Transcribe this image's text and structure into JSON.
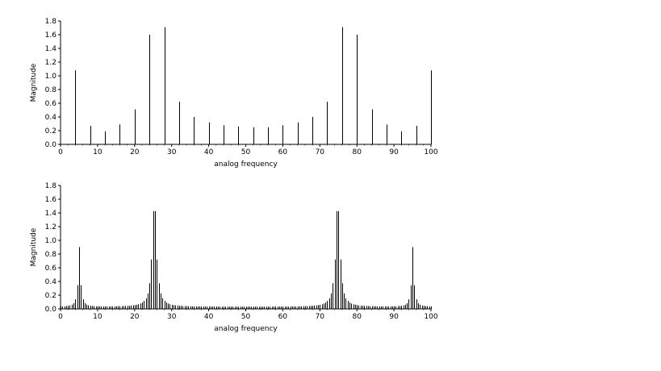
{
  "chart_data": [
    {
      "type": "bar",
      "style": "stem",
      "xlabel": "analog frequency",
      "ylabel": "Magnitude",
      "xlim": [
        0,
        100
      ],
      "ylim": [
        0,
        1.8
      ],
      "xticks": [
        0,
        10,
        20,
        30,
        40,
        50,
        60,
        70,
        80,
        90,
        100
      ],
      "yticks": [
        0.0,
        0.2,
        0.4,
        0.6,
        0.8,
        1.0,
        1.2,
        1.4,
        1.6,
        1.8
      ],
      "ytick_labels": [
        "0.0",
        "0.2",
        "0.4",
        "0.6",
        "0.8",
        "1.0",
        "1.2",
        "1.4",
        "1.6",
        "1.8"
      ],
      "x": [
        4,
        8,
        12,
        16,
        20,
        24,
        28,
        32,
        36,
        40,
        44,
        48,
        52,
        56,
        60,
        64,
        68,
        72,
        76,
        80,
        84,
        88,
        92,
        96,
        100
      ],
      "values": [
        1.08,
        0.27,
        0.19,
        0.29,
        0.51,
        1.6,
        1.71,
        0.62,
        0.4,
        0.32,
        0.28,
        0.26,
        0.25,
        0.25,
        0.28,
        0.32,
        0.4,
        0.62,
        1.71,
        1.6,
        0.51,
        0.29,
        0.19,
        0.27,
        1.08
      ]
    },
    {
      "type": "bar",
      "style": "stem",
      "xlabel": "analog frequency",
      "ylabel": "Magnitude",
      "xlim": [
        0,
        100
      ],
      "ylim": [
        0,
        1.8
      ],
      "xticks": [
        0,
        10,
        20,
        30,
        40,
        50,
        60,
        70,
        80,
        90,
        100
      ],
      "yticks": [
        0.0,
        0.2,
        0.4,
        0.6,
        0.8,
        1.0,
        1.2,
        1.4,
        1.6,
        1.8
      ],
      "ytick_labels": [
        "0.0",
        "0.2",
        "0.4",
        "0.6",
        "0.8",
        "1.0",
        "1.2",
        "1.4",
        "1.6",
        "1.8"
      ],
      "x_range": [
        0,
        100
      ],
      "x_step": 0.5,
      "peaks": [
        {
          "center": 5,
          "height": 0.87,
          "decay": 0.92
        },
        {
          "center": 25.25,
          "height": 1.6,
          "decay": 1.6
        },
        {
          "center": 74.75,
          "height": 1.6,
          "decay": 1.6
        },
        {
          "center": 95,
          "height": 0.87,
          "decay": 0.92
        }
      ],
      "baseline": 0.03
    }
  ]
}
